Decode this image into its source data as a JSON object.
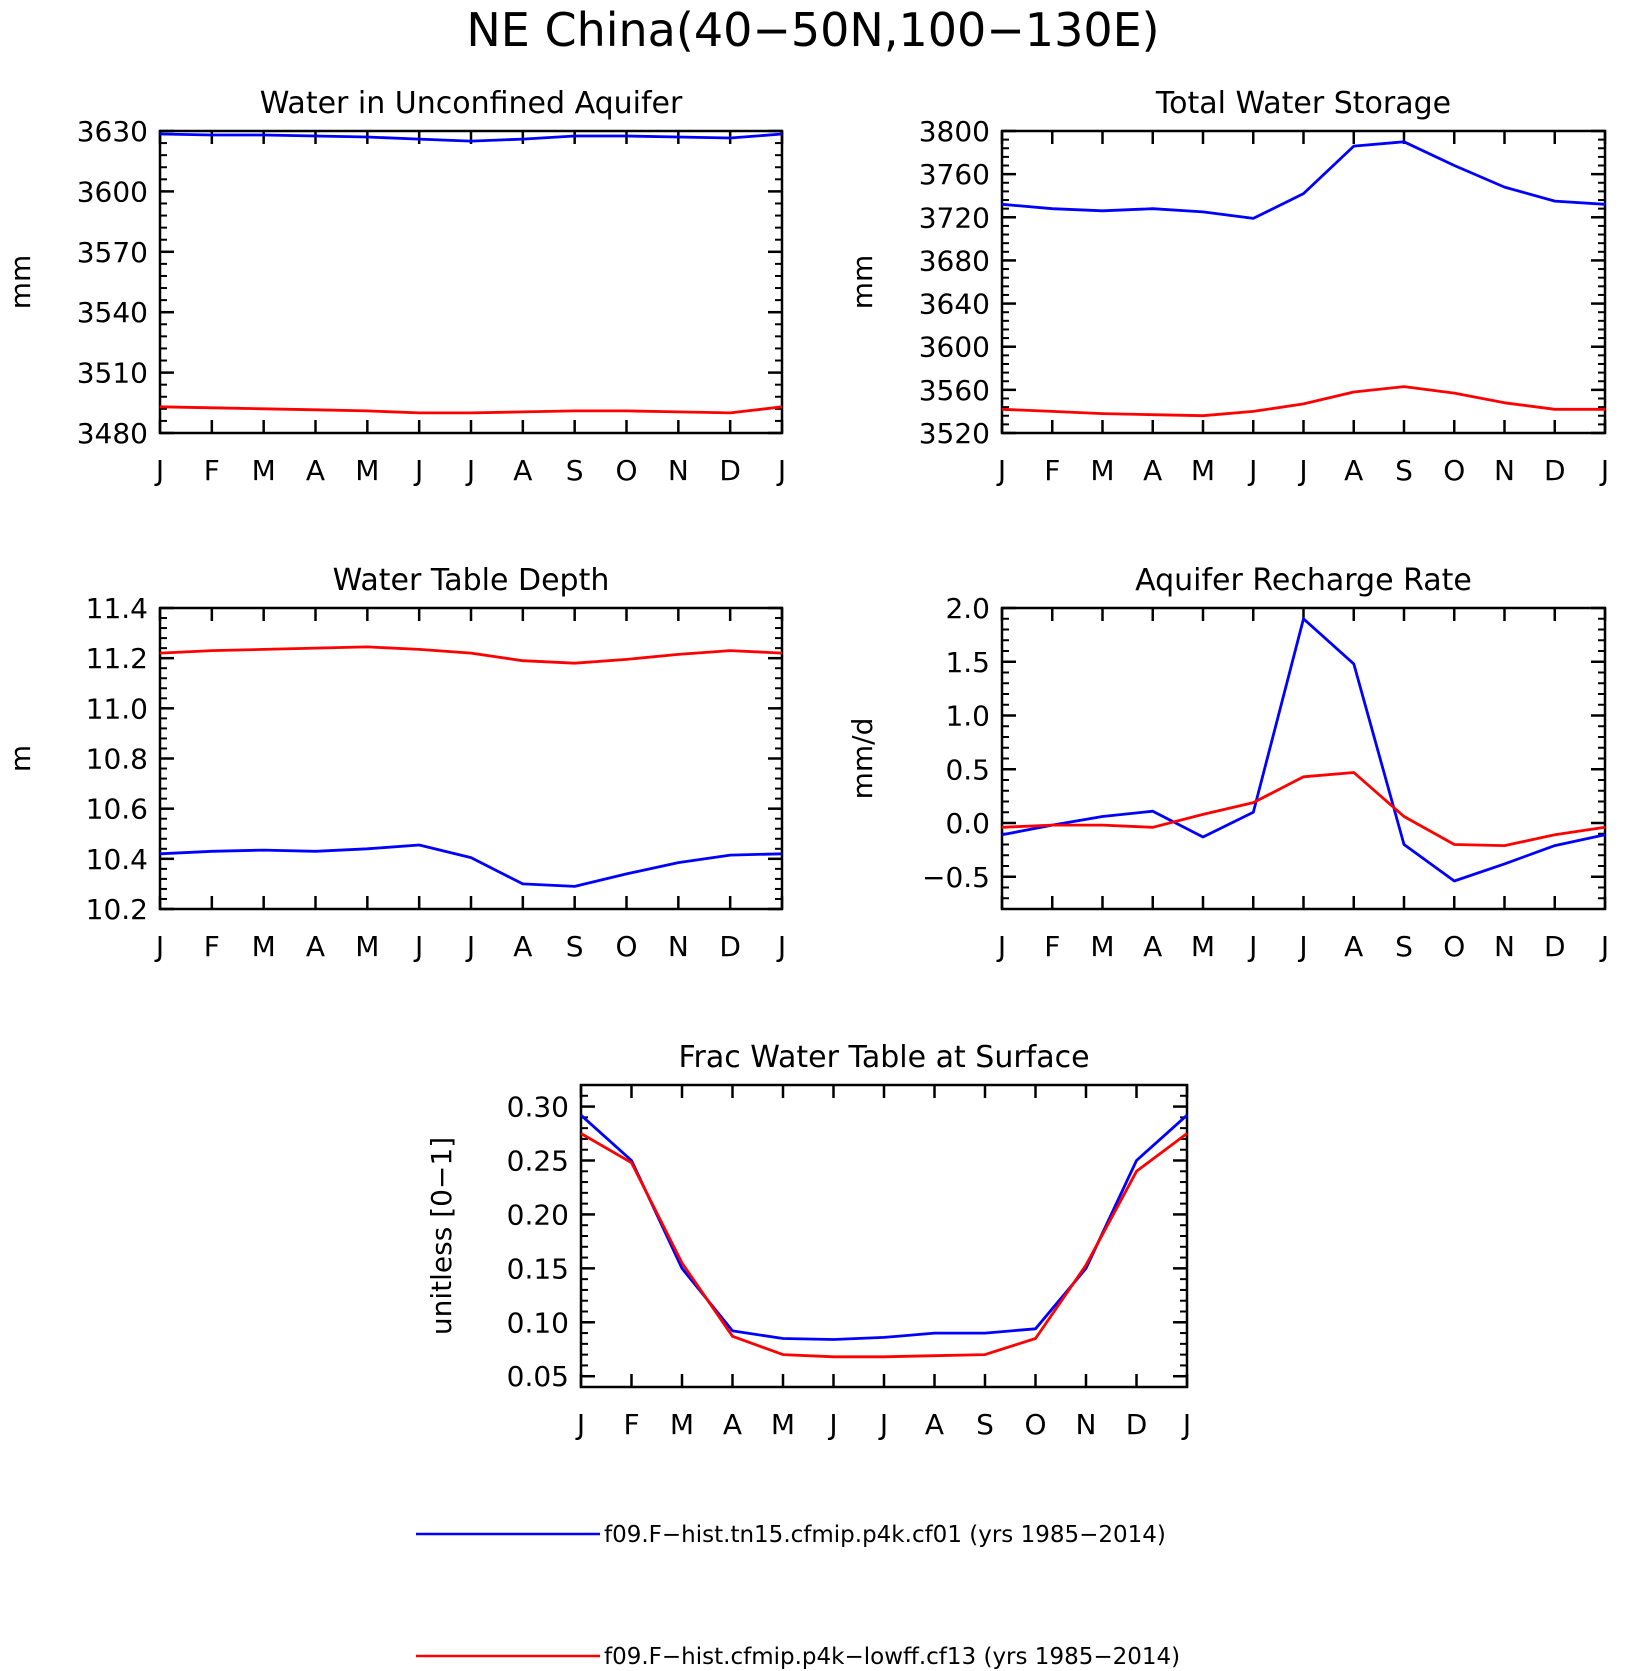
{
  "title": "NE China(40−50N,100−130E)",
  "colors": {
    "series1": "#0000ff",
    "series2": "#ff0000",
    "axes": "#000000"
  },
  "legend": {
    "entries": [
      {
        "label": "f09.F−hist.tn15.cfmip.p4k.cf01 (yrs 1985−2014)",
        "color": "#0000ff"
      },
      {
        "label": "f09.F−hist.cfmip.p4k−lowff.cf13 (yrs 1985−2014)",
        "color": "#ff0000"
      }
    ]
  },
  "chart_data": [
    {
      "type": "line",
      "title": "Water in Unconfined Aquifer",
      "ylabel": "mm",
      "xlabel": "",
      "categories": [
        "J",
        "F",
        "M",
        "A",
        "M",
        "J",
        "J",
        "A",
        "S",
        "O",
        "N",
        "D",
        "J"
      ],
      "ylim": [
        3480,
        3630
      ],
      "yticks": [
        3480,
        3510,
        3540,
        3570,
        3600,
        3630
      ],
      "ytick_labels": [
        "3480",
        "3510",
        "3540",
        "3570",
        "3600",
        "3630"
      ],
      "series": [
        {
          "color": "#0000ff",
          "values": [
            3628.5,
            3628,
            3628,
            3627.5,
            3627,
            3626,
            3625,
            3626,
            3627.5,
            3627.5,
            3627,
            3626.5,
            3628.5
          ]
        },
        {
          "color": "#ff0000",
          "values": [
            3493,
            3492.5,
            3492,
            3491.5,
            3491,
            3490,
            3490,
            3490.5,
            3491,
            3491,
            3490.5,
            3490,
            3493
          ]
        }
      ]
    },
    {
      "type": "line",
      "title": "Total Water Storage",
      "ylabel": "mm",
      "xlabel": "",
      "categories": [
        "J",
        "F",
        "M",
        "A",
        "M",
        "J",
        "J",
        "A",
        "S",
        "O",
        "N",
        "D",
        "J"
      ],
      "ylim": [
        3520,
        3800
      ],
      "yticks": [
        3520,
        3560,
        3600,
        3640,
        3680,
        3720,
        3760,
        3800
      ],
      "ytick_labels": [
        "3520",
        "3560",
        "3600",
        "3640",
        "3680",
        "3720",
        "3760",
        "3800"
      ],
      "series": [
        {
          "color": "#0000ff",
          "values": [
            3732,
            3728,
            3726,
            3728,
            3725,
            3719,
            3742,
            3786,
            3790,
            3768,
            3748,
            3735,
            3732
          ]
        },
        {
          "color": "#ff0000",
          "values": [
            3542,
            3540,
            3538,
            3537,
            3536,
            3540,
            3547,
            3558,
            3563,
            3557,
            3548,
            3542,
            3542
          ]
        }
      ]
    },
    {
      "type": "line",
      "title": "Water Table Depth",
      "ylabel": "m",
      "xlabel": "",
      "categories": [
        "J",
        "F",
        "M",
        "A",
        "M",
        "J",
        "J",
        "A",
        "S",
        "O",
        "N",
        "D",
        "J"
      ],
      "ylim": [
        10.2,
        11.4
      ],
      "yticks": [
        10.2,
        10.4,
        10.6,
        10.8,
        11.0,
        11.2,
        11.4
      ],
      "ytick_labels": [
        "10.2",
        "10.4",
        "10.6",
        "10.8",
        "11.0",
        "11.2",
        "11.4"
      ],
      "series": [
        {
          "color": "#0000ff",
          "values": [
            10.42,
            10.43,
            10.435,
            10.43,
            10.44,
            10.455,
            10.405,
            10.3,
            10.29,
            10.34,
            10.385,
            10.415,
            10.42
          ]
        },
        {
          "color": "#ff0000",
          "values": [
            11.22,
            11.23,
            11.235,
            11.24,
            11.245,
            11.235,
            11.22,
            11.19,
            11.18,
            11.195,
            11.215,
            11.23,
            11.22
          ]
        }
      ]
    },
    {
      "type": "line",
      "title": "Aquifer Recharge Rate",
      "ylabel": "mm/d",
      "xlabel": "",
      "categories": [
        "J",
        "F",
        "M",
        "A",
        "M",
        "J",
        "J",
        "A",
        "S",
        "O",
        "N",
        "D",
        "J"
      ],
      "ylim": [
        -0.8,
        2.0
      ],
      "yticks": [
        -0.5,
        0.0,
        0.5,
        1.0,
        1.5,
        2.0
      ],
      "ytick_labels": [
        "−0.5",
        "0.0",
        "0.5",
        "1.0",
        "1.5",
        "2.0"
      ],
      "series": [
        {
          "color": "#0000ff",
          "values": [
            -0.11,
            -0.02,
            0.06,
            0.11,
            -0.13,
            0.1,
            1.9,
            1.48,
            -0.2,
            -0.54,
            -0.38,
            -0.21,
            -0.11
          ]
        },
        {
          "color": "#ff0000",
          "values": [
            -0.04,
            -0.02,
            -0.02,
            -0.04,
            0.08,
            0.19,
            0.43,
            0.47,
            0.06,
            -0.2,
            -0.21,
            -0.11,
            -0.04
          ]
        }
      ]
    },
    {
      "type": "line",
      "title": "Frac Water Table at Surface",
      "ylabel": "unitless [0−1]",
      "xlabel": "",
      "categories": [
        "J",
        "F",
        "M",
        "A",
        "M",
        "J",
        "J",
        "A",
        "S",
        "O",
        "N",
        "D",
        "J"
      ],
      "ylim": [
        0.04,
        0.32
      ],
      "yticks": [
        0.05,
        0.1,
        0.15,
        0.2,
        0.25,
        0.3
      ],
      "ytick_labels": [
        "0.05",
        "0.10",
        "0.15",
        "0.20",
        "0.25",
        "0.30"
      ],
      "series": [
        {
          "color": "#0000ff",
          "values": [
            0.292,
            0.25,
            0.15,
            0.092,
            0.085,
            0.084,
            0.086,
            0.09,
            0.09,
            0.094,
            0.15,
            0.25,
            0.292
          ]
        },
        {
          "color": "#ff0000",
          "values": [
            0.275,
            0.248,
            0.155,
            0.087,
            0.07,
            0.068,
            0.068,
            0.069,
            0.07,
            0.085,
            0.153,
            0.24,
            0.275
          ]
        }
      ]
    }
  ]
}
